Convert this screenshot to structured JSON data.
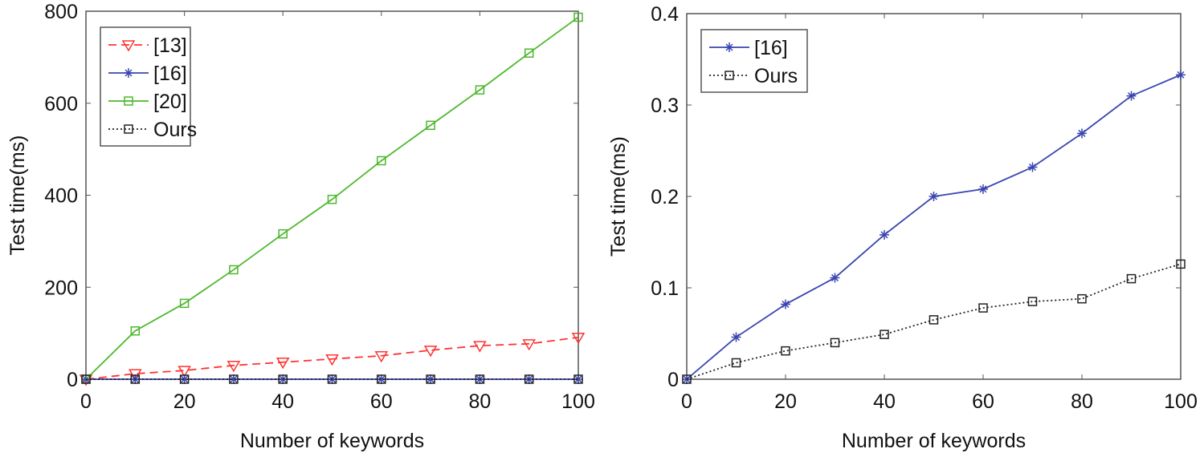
{
  "chart_data": [
    {
      "type": "line",
      "title": "",
      "xlabel": "Number of keywords",
      "ylabel": "Test time(ms)",
      "xlim": [
        0,
        100
      ],
      "ylim": [
        0,
        800
      ],
      "xticks": [
        0,
        20,
        40,
        60,
        80,
        100
      ],
      "yticks": [
        0,
        200,
        400,
        600,
        800
      ],
      "legend_position": "top-left",
      "x": [
        0,
        10,
        20,
        30,
        40,
        50,
        60,
        70,
        80,
        90,
        100
      ],
      "series": [
        {
          "name": "[13]",
          "color": "#ff3333",
          "dash": "dashed",
          "marker": "triangle-down",
          "values": [
            0,
            12,
            19,
            30,
            37,
            44,
            51,
            63,
            73,
            77,
            91
          ]
        },
        {
          "name": "[16]",
          "color": "#3a46b0",
          "dash": "solid",
          "marker": "asterisk",
          "values": [
            0,
            0,
            0,
            0,
            0,
            0,
            0,
            0,
            0,
            0,
            0
          ]
        },
        {
          "name": "[20]",
          "color": "#4cb82c",
          "dash": "solid",
          "marker": "square",
          "values": [
            0,
            105,
            165,
            238,
            316,
            391,
            475,
            552,
            629,
            709,
            787
          ]
        },
        {
          "name": "Ours",
          "color": "#222222",
          "dash": "dotted",
          "marker": "square",
          "values": [
            0,
            0,
            0,
            0,
            0,
            0,
            0,
            0,
            0,
            0,
            0
          ]
        }
      ]
    },
    {
      "type": "line",
      "title": "",
      "xlabel": "Number of keywords",
      "ylabel": "Test time(ms)",
      "xlim": [
        0,
        100
      ],
      "ylim": [
        0,
        0.4
      ],
      "xticks": [
        0,
        20,
        40,
        60,
        80,
        100
      ],
      "yticks": [
        0,
        0.1,
        0.2,
        0.3,
        0.4
      ],
      "legend_position": "top-left",
      "x": [
        0,
        10,
        20,
        30,
        40,
        50,
        60,
        70,
        80,
        90,
        100
      ],
      "series": [
        {
          "name": "[16]",
          "color": "#3a46b0",
          "dash": "solid",
          "marker": "asterisk",
          "values": [
            0,
            0.046,
            0.082,
            0.111,
            0.158,
            0.2,
            0.208,
            0.232,
            0.269,
            0.31,
            0.333
          ]
        },
        {
          "name": "Ours",
          "color": "#222222",
          "dash": "dotted",
          "marker": "square",
          "values": [
            0,
            0.018,
            0.031,
            0.04,
            0.049,
            0.065,
            0.078,
            0.085,
            0.088,
            0.11,
            0.126
          ]
        }
      ]
    }
  ]
}
